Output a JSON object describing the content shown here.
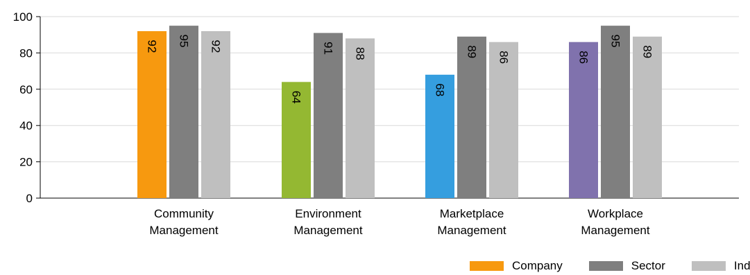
{
  "chart_data": {
    "type": "bar",
    "categories": [
      [
        "Community",
        "Management"
      ],
      [
        "Environment",
        "Management"
      ],
      [
        "Marketplace",
        "Management"
      ],
      [
        "Workplace",
        "Management"
      ]
    ],
    "series": [
      {
        "name": "Company",
        "values": [
          92,
          64,
          68,
          86
        ],
        "colors": [
          "#f7990f",
          "#94b832",
          "#359edf",
          "#8072ad"
        ]
      },
      {
        "name": "Sector",
        "values": [
          95,
          91,
          89,
          95
        ],
        "color": "#7f7f7f"
      },
      {
        "name": "Index",
        "values": [
          92,
          88,
          86,
          89
        ],
        "color": "#bfbfbf"
      }
    ],
    "ylim": [
      0,
      100
    ],
    "yticks": [
      0,
      20,
      40,
      60,
      80,
      100
    ],
    "grid": true,
    "legend_position": "bottom-right",
    "title": "",
    "xlabel": "",
    "ylabel": ""
  },
  "legend": {
    "items": [
      {
        "label": "Company",
        "color": "#f7990f"
      },
      {
        "label": "Sector",
        "color": "#7f7f7f"
      },
      {
        "label": "Index",
        "color": "#bfbfbf"
      }
    ]
  }
}
